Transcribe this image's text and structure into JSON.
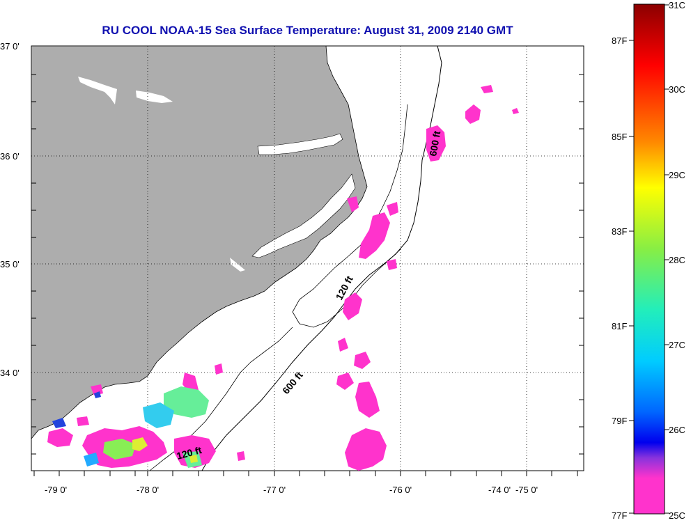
{
  "title": "RU COOL  NOAA-15  Sea Surface Temperature:  August 31, 2009 2140 GMT",
  "lat_labels": [
    "37 0'",
    "36 0'",
    "35 0'",
    "34 0'"
  ],
  "lon_labels": [
    "-79 0'",
    "-78 0'",
    "-77 0'",
    "-76 0'",
    "-75 0'",
    "-74 0'"
  ],
  "contour_labels": {
    "isobath_600_north": "600 ft",
    "isobath_600_south": "600 ft",
    "isobath_120_mid": "120 ft",
    "isobath_120_south": "120 ft"
  },
  "colorbar": {
    "celsius_labels": [
      "31C",
      "30C",
      "29C",
      "28C",
      "27C",
      "26C",
      "25C"
    ],
    "fahrenheit_labels": [
      "87F",
      "85F",
      "83F",
      "81F",
      "79F",
      "77F"
    ]
  },
  "colors": {
    "title": "#1010b0",
    "land": "#adadad",
    "water_bg": "#ffffff",
    "sst_min": "#ff33cc",
    "sst_max": "#8b0000"
  }
}
